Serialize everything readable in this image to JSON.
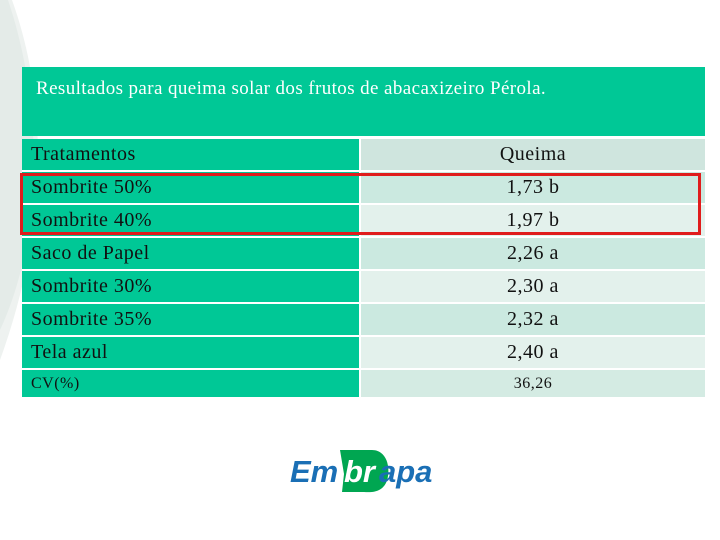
{
  "title": "Resultados para queima solar dos frutos de abacaxizeiro Pérola.",
  "table": {
    "header": {
      "treatment": "Tratamentos",
      "value": "Queima"
    },
    "rows": [
      {
        "treatment": "Sombrite 50%",
        "value": "1,73 b"
      },
      {
        "treatment": "Sombrite 40%",
        "value": "1,97 b"
      },
      {
        "treatment": "Saco de Papel",
        "value": "2,26 a"
      },
      {
        "treatment": "Sombrite 30%",
        "value": "2,30 a"
      },
      {
        "treatment": "Sombrite 35%",
        "value": "2,32 a"
      },
      {
        "treatment": "Tela azul",
        "value": "2,40 a"
      }
    ],
    "footer": {
      "label": "CV(%)",
      "value": "36,26"
    }
  },
  "highlight": {
    "rows": [
      "Sombrite 50%",
      "Sombrite 40%"
    ],
    "color": "#e01c1c"
  },
  "logo": {
    "text": "Embrapa",
    "color": "#1a6fb5",
    "accent_color": "#00a651"
  },
  "colors": {
    "header_green": "#00c896",
    "cell_light": "#cbe9e0",
    "cell_lighter": "#e3f1ec"
  }
}
